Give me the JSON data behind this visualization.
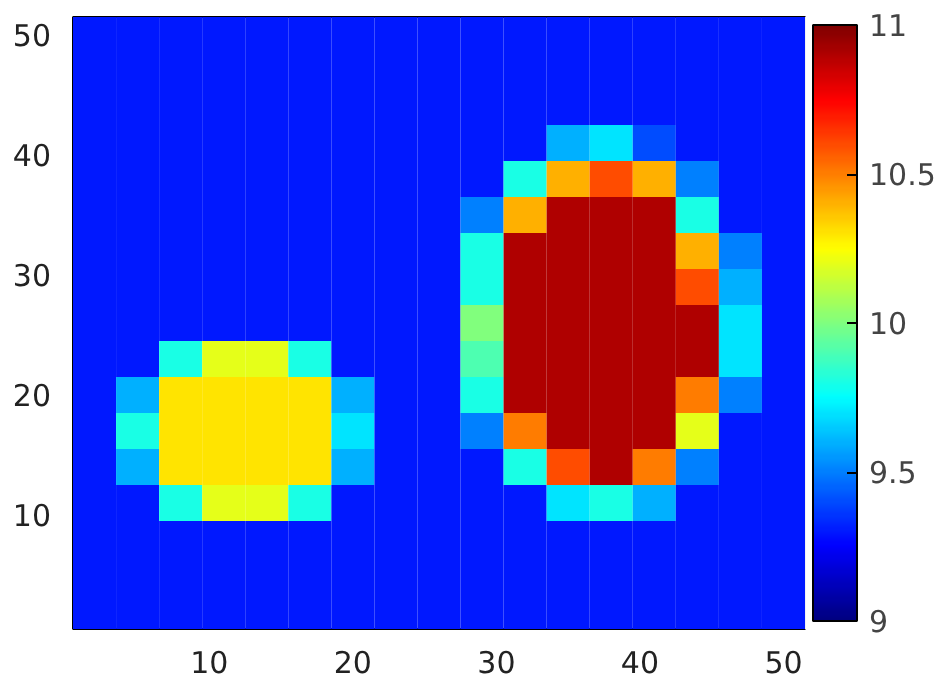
{
  "chart_data": {
    "type": "heatmap",
    "x": [
      2,
      5,
      8,
      11,
      14,
      17,
      20,
      23,
      26,
      29,
      32,
      35,
      38,
      41,
      44,
      47,
      50
    ],
    "y": [
      50,
      47,
      44,
      41,
      38,
      35,
      32,
      29,
      26,
      23,
      20,
      17,
      14,
      11,
      8,
      5,
      2
    ],
    "cells": [
      [
        9.3,
        9.3,
        9.3,
        9.3,
        9.3,
        9.3,
        9.3,
        9.3,
        9.3,
        9.3,
        9.3,
        9.3,
        9.3,
        9.3,
        9.3,
        9.3,
        9.3
      ],
      [
        9.3,
        9.3,
        9.3,
        9.3,
        9.3,
        9.3,
        9.3,
        9.3,
        9.3,
        9.3,
        9.3,
        9.3,
        9.3,
        9.3,
        9.3,
        9.3,
        9.3
      ],
      [
        9.3,
        9.3,
        9.3,
        9.3,
        9.3,
        9.3,
        9.3,
        9.3,
        9.3,
        9.3,
        9.3,
        9.3,
        9.3,
        9.3,
        9.3,
        9.3,
        9.3
      ],
      [
        9.3,
        9.3,
        9.3,
        9.3,
        9.3,
        9.3,
        9.3,
        9.3,
        9.3,
        9.3,
        9.3,
        9.6,
        9.7,
        9.4,
        9.3,
        9.3,
        9.3
      ],
      [
        9.3,
        9.3,
        9.3,
        9.3,
        9.3,
        9.3,
        9.3,
        9.3,
        9.3,
        9.3,
        9.8,
        10.4,
        10.6,
        10.4,
        9.5,
        9.3,
        9.3
      ],
      [
        9.3,
        9.3,
        9.3,
        9.3,
        9.3,
        9.3,
        9.3,
        9.3,
        9.3,
        9.5,
        10.4,
        10.9,
        10.9,
        10.9,
        9.8,
        9.3,
        9.3
      ],
      [
        9.3,
        9.3,
        9.3,
        9.3,
        9.3,
        9.3,
        9.3,
        9.3,
        9.3,
        9.8,
        10.9,
        10.9,
        10.9,
        10.9,
        10.4,
        9.5,
        9.3
      ],
      [
        9.3,
        9.3,
        9.3,
        9.3,
        9.3,
        9.3,
        9.3,
        9.3,
        9.3,
        9.8,
        10.9,
        10.9,
        10.9,
        10.9,
        10.6,
        9.6,
        9.3
      ],
      [
        9.3,
        9.3,
        9.3,
        9.3,
        9.3,
        9.3,
        9.3,
        9.3,
        9.3,
        10.0,
        10.9,
        10.9,
        10.9,
        10.9,
        10.9,
        9.7,
        9.3
      ],
      [
        9.3,
        9.3,
        9.8,
        10.2,
        10.2,
        9.8,
        9.3,
        9.3,
        9.3,
        9.9,
        10.9,
        10.9,
        10.9,
        10.9,
        10.9,
        9.7,
        9.3
      ],
      [
        9.3,
        9.6,
        10.3,
        10.3,
        10.3,
        10.3,
        9.6,
        9.3,
        9.3,
        9.8,
        10.9,
        10.9,
        10.9,
        10.9,
        10.5,
        9.5,
        9.3
      ],
      [
        9.3,
        9.8,
        10.3,
        10.3,
        10.3,
        10.3,
        9.7,
        9.3,
        9.3,
        9.5,
        10.5,
        10.9,
        10.9,
        10.9,
        10.2,
        9.3,
        9.3
      ],
      [
        9.3,
        9.6,
        10.3,
        10.3,
        10.3,
        10.3,
        9.6,
        9.3,
        9.3,
        9.3,
        9.8,
        10.6,
        10.9,
        10.5,
        9.5,
        9.3,
        9.3
      ],
      [
        9.3,
        9.3,
        9.8,
        10.2,
        10.2,
        9.8,
        9.3,
        9.3,
        9.3,
        9.3,
        9.3,
        9.7,
        9.8,
        9.6,
        9.3,
        9.3,
        9.3
      ],
      [
        9.3,
        9.3,
        9.3,
        9.3,
        9.3,
        9.3,
        9.3,
        9.3,
        9.3,
        9.3,
        9.3,
        9.3,
        9.3,
        9.3,
        9.3,
        9.3,
        9.3
      ],
      [
        9.3,
        9.3,
        9.3,
        9.3,
        9.3,
        9.3,
        9.3,
        9.3,
        9.3,
        9.3,
        9.3,
        9.3,
        9.3,
        9.3,
        9.3,
        9.3,
        9.3
      ],
      [
        9.3,
        9.3,
        9.3,
        9.3,
        9.3,
        9.3,
        9.3,
        9.3,
        9.3,
        9.3,
        9.3,
        9.3,
        9.3,
        9.3,
        9.3,
        9.3,
        9.3
      ]
    ],
    "xlim": [
      0.5,
      51.5
    ],
    "ylim": [
      0.5,
      51.5
    ],
    "xticks": [
      10,
      20,
      30,
      40,
      50
    ],
    "yticks": [
      10,
      20,
      30,
      40,
      50
    ],
    "clim": [
      9,
      11
    ],
    "cticks": [
      9,
      9.5,
      10,
      10.5,
      11
    ],
    "grid": false
  }
}
